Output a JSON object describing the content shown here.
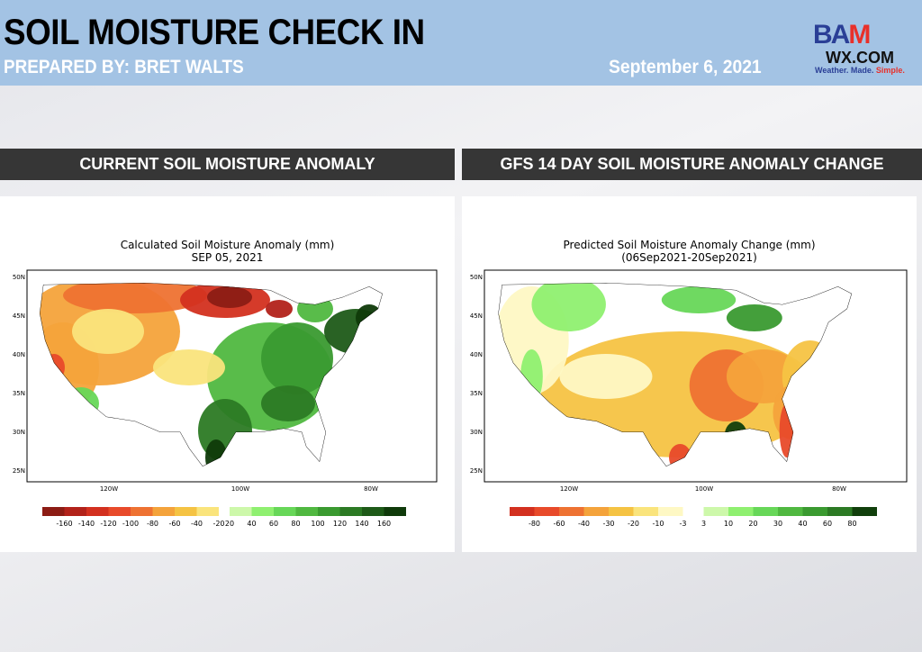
{
  "header": {
    "title": "SOIL MOISTURE CHECK IN",
    "prepared_by": "PREPARED BY: BRET WALTS",
    "date": "September 6, 2021",
    "logo": {
      "text_top": "BAM",
      "text_bottom": "WX.COM",
      "tagline_a": "Weather. Made. ",
      "tagline_b": "Simple."
    }
  },
  "sections": [
    {
      "heading": "CURRENT SOIL MOISTURE ANOMALY",
      "map_title": "Calculated Soil Moisture Anomaly (mm)",
      "map_subtitle": "SEP 05, 2021",
      "legend": {
        "labels": [
          "-160",
          "-140",
          "-120",
          "-100",
          "-80",
          "-60",
          "-40",
          "-20",
          "20",
          "40",
          "60",
          "80",
          "100",
          "120",
          "140",
          "160"
        ],
        "dry_colors": [
          "#8c1c14",
          "#b2221a",
          "#d3301f",
          "#e84a2a",
          "#ee7232",
          "#f4a33b",
          "#f5c343",
          "#fae47c"
        ],
        "wet_colors": [
          "#cdf8aa",
          "#8ff070",
          "#67d758",
          "#50b840",
          "#3a9a30",
          "#2c7a24",
          "#1e5a18",
          "#0f3a0a"
        ]
      }
    },
    {
      "heading": "GFS 14 DAY SOIL MOISTURE ANOMALY CHANGE",
      "map_title": "Predicted Soil Moisture Anomaly Change (mm)",
      "map_subtitle": "(06Sep2021-20Sep2021)",
      "legend": {
        "labels": [
          "-80",
          "-60",
          "-40",
          "-30",
          "-20",
          "-10",
          "-3",
          "3",
          "10",
          "20",
          "30",
          "40",
          "60",
          "80"
        ],
        "dry_colors": [
          "#d3301f",
          "#e84a2a",
          "#ee7232",
          "#f4a33b",
          "#f5c343",
          "#fae47c",
          "#fef8c4"
        ],
        "wet_colors": [
          "#cdf8aa",
          "#8ff070",
          "#67d758",
          "#50b840",
          "#3a9a30",
          "#2c7a24",
          "#113f0c"
        ]
      }
    }
  ],
  "axes": {
    "lat": [
      "50N",
      "45N",
      "40N",
      "35N",
      "30N",
      "25N"
    ],
    "lon": [
      "120W",
      "100W",
      "80W"
    ]
  }
}
